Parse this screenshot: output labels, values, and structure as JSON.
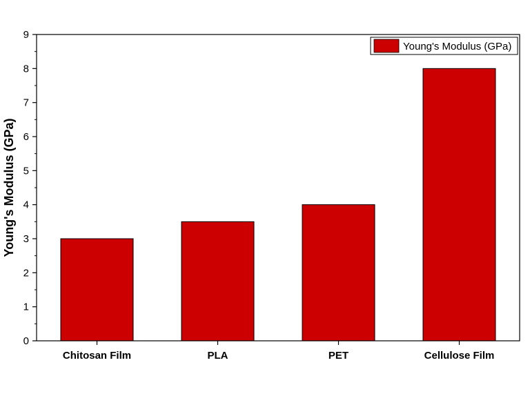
{
  "chart_data": {
    "type": "bar",
    "categories": [
      "Chitosan Film",
      "PLA",
      "PET",
      "Cellulose Film"
    ],
    "series": [
      {
        "name": "Young's Modulus (GPa)",
        "values": [
          3,
          3.5,
          4,
          8
        ],
        "color": "#cc0000"
      }
    ],
    "title": "",
    "xlabel": "",
    "ylabel": "Young's Modulus (GPa)",
    "ylim": [
      0,
      9
    ],
    "yticks": [
      0,
      1,
      2,
      3,
      4,
      5,
      6,
      7,
      8,
      9
    ],
    "grid": false,
    "legend": "top-right"
  }
}
